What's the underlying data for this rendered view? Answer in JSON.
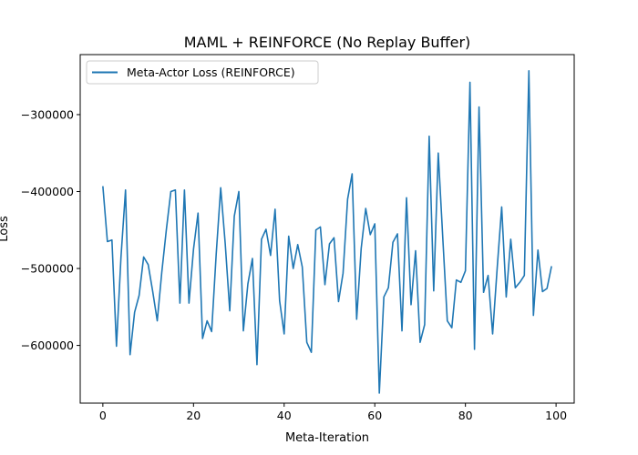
{
  "chart_data": {
    "type": "line",
    "title": "MAML + REINFORCE (No Replay Buffer)",
    "xlabel": "Meta-Iteration",
    "ylabel": "Loss",
    "xlim": [
      -5,
      104
    ],
    "ylim": [
      -675000,
      -222000
    ],
    "xticks": [
      0,
      20,
      40,
      60,
      80,
      100
    ],
    "yticks": [
      -600000,
      -500000,
      -400000,
      -300000
    ],
    "ytick_labels": [
      "−600000",
      "−500000",
      "−400000",
      "−300000"
    ],
    "grid": false,
    "legend_position": "top-left",
    "series": [
      {
        "name": "Meta-Actor Loss (REINFORCE)",
        "color": "#1f77b4",
        "x": [
          0,
          1,
          2,
          3,
          4,
          5,
          6,
          7,
          8,
          9,
          10,
          11,
          12,
          13,
          14,
          15,
          16,
          17,
          18,
          19,
          20,
          21,
          22,
          23,
          24,
          25,
          26,
          27,
          28,
          29,
          30,
          31,
          32,
          33,
          34,
          35,
          36,
          37,
          38,
          39,
          40,
          41,
          42,
          43,
          44,
          45,
          46,
          47,
          48,
          49,
          50,
          51,
          52,
          53,
          54,
          55,
          56,
          57,
          58,
          59,
          60,
          61,
          62,
          63,
          64,
          65,
          66,
          67,
          68,
          69,
          70,
          71,
          72,
          73,
          74,
          75,
          76,
          77,
          78,
          79,
          80,
          81,
          82,
          83,
          84,
          85,
          86,
          87,
          88,
          89,
          90,
          91,
          92,
          93,
          94,
          95,
          96,
          97,
          98,
          99
        ],
        "values": [
          -393000,
          -465000,
          -463000,
          -601000,
          -485000,
          -398000,
          -612000,
          -557000,
          -535000,
          -485000,
          -495000,
          -530000,
          -568000,
          -505000,
          -450000,
          -400000,
          -398000,
          -545000,
          -398000,
          -545000,
          -475000,
          -428000,
          -591000,
          -568000,
          -582000,
          -482000,
          -395000,
          -468000,
          -555000,
          -432000,
          -400000,
          -581000,
          -520000,
          -487000,
          -625000,
          -462000,
          -449000,
          -483000,
          -423000,
          -542000,
          -585000,
          -458000,
          -500000,
          -469000,
          -498000,
          -596000,
          -609000,
          -450000,
          -446000,
          -521000,
          -468000,
          -460000,
          -543000,
          -506000,
          -410000,
          -377000,
          -566000,
          -474000,
          -422000,
          -456000,
          -442000,
          -662000,
          -537000,
          -525000,
          -466000,
          -455000,
          -581000,
          -408000,
          -547000,
          -477000,
          -596000,
          -573000,
          -328000,
          -529000,
          -350000,
          -460000,
          -568000,
          -577000,
          -515000,
          -518000,
          -503000,
          -258000,
          -605000,
          -290000,
          -531000,
          -509000,
          -585000,
          -500000,
          -420000,
          -537000,
          -462000,
          -525000,
          -518000,
          -509000,
          -243000,
          -561000,
          -476000,
          -530000,
          -526000,
          -497000
        ]
      }
    ]
  }
}
